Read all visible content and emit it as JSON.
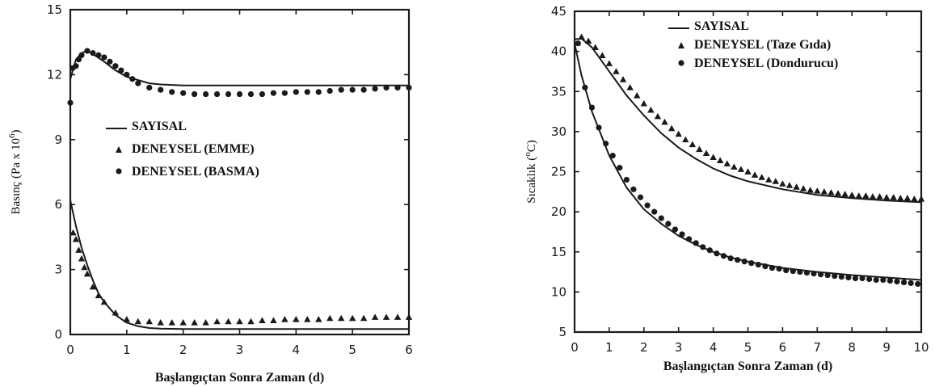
{
  "chart_data": [
    {
      "type": "line",
      "xlabel": "Başlangıçtan Sonra Zaman (d)",
      "ylabel": "Basınç (Pa x 10",
      "ylabel_exp": "6",
      "ylabel_end": ")",
      "xlim": [
        0,
        6
      ],
      "ylim": [
        0,
        15
      ],
      "xticks": [
        "0",
        "1",
        "2",
        "3",
        "4",
        "5",
        "6"
      ],
      "yticks": [
        "0",
        "3",
        "6",
        "9",
        "12",
        "15"
      ],
      "legend": [
        {
          "label": "SAYISAL",
          "marker": "line"
        },
        {
          "label": "DENEYSEL (EMME)",
          "marker": "triangle"
        },
        {
          "label": "DENEYSEL (BASMA)",
          "marker": "circle"
        }
      ],
      "series": [
        {
          "name": "SAYISAL",
          "kind": "line",
          "x": [
            0,
            0.1,
            0.2,
            0.3,
            0.4,
            0.6,
            0.8,
            1.0,
            1.2,
            1.4,
            1.6,
            2,
            3,
            4,
            5,
            6
          ],
          "y": [
            11.8,
            12.7,
            13.0,
            13.1,
            12.95,
            12.6,
            12.2,
            11.9,
            11.75,
            11.6,
            11.55,
            11.5,
            11.5,
            11.5,
            11.5,
            11.5
          ]
        },
        {
          "name": "SAYISAL",
          "kind": "line",
          "x": [
            0,
            0.1,
            0.2,
            0.3,
            0.4,
            0.5,
            0.6,
            0.8,
            1.0,
            1.2,
            1.4,
            1.6,
            2,
            3,
            4,
            5,
            6
          ],
          "y": [
            6.2,
            5.0,
            4.0,
            3.2,
            2.5,
            1.9,
            1.5,
            0.9,
            0.55,
            0.38,
            0.3,
            0.27,
            0.25,
            0.25,
            0.25,
            0.25,
            0.25
          ]
        },
        {
          "name": "DENEYSEL (BASMA)",
          "kind": "circle",
          "x": [
            0,
            0.04,
            0.1,
            0.15,
            0.2,
            0.3,
            0.4,
            0.5,
            0.6,
            0.7,
            0.8,
            0.9,
            1.0,
            1.1,
            1.2,
            1.4,
            1.6,
            1.8,
            2.0,
            2.2,
            2.4,
            2.6,
            2.8,
            3.0,
            3.2,
            3.4,
            3.6,
            3.8,
            4.0,
            4.2,
            4.4,
            4.6,
            4.8,
            5.0,
            5.2,
            5.4,
            5.6,
            5.8,
            6.0
          ],
          "y": [
            10.7,
            12.3,
            12.4,
            12.7,
            12.9,
            13.1,
            13.0,
            12.9,
            12.8,
            12.6,
            12.4,
            12.2,
            12.0,
            11.8,
            11.6,
            11.4,
            11.3,
            11.2,
            11.15,
            11.1,
            11.1,
            11.1,
            11.1,
            11.1,
            11.1,
            11.1,
            11.15,
            11.15,
            11.2,
            11.2,
            11.2,
            11.25,
            11.3,
            11.3,
            11.3,
            11.35,
            11.4,
            11.4,
            11.4
          ]
        },
        {
          "name": "DENEYSEL (EMME)",
          "kind": "triangle",
          "x": [
            0.05,
            0.1,
            0.15,
            0.2,
            0.25,
            0.3,
            0.4,
            0.5,
            0.6,
            0.8,
            1.0,
            1.2,
            1.4,
            1.6,
            1.8,
            2.0,
            2.2,
            2.4,
            2.6,
            2.8,
            3.0,
            3.2,
            3.4,
            3.6,
            3.8,
            4.0,
            4.2,
            4.4,
            4.6,
            4.8,
            5.0,
            5.2,
            5.4,
            5.6,
            5.8,
            6.0
          ],
          "y": [
            4.7,
            4.4,
            3.9,
            3.5,
            3.1,
            2.8,
            2.2,
            1.8,
            1.5,
            1.0,
            0.7,
            0.6,
            0.6,
            0.55,
            0.55,
            0.55,
            0.55,
            0.55,
            0.6,
            0.6,
            0.6,
            0.6,
            0.65,
            0.65,
            0.7,
            0.7,
            0.7,
            0.7,
            0.75,
            0.75,
            0.75,
            0.75,
            0.8,
            0.8,
            0.8,
            0.8
          ]
        }
      ]
    },
    {
      "type": "line",
      "xlabel": "Başlangıçtan Sonra Zaman (d)",
      "ylabel": "Sıcaklık (",
      "ylabel_exp": "o",
      "ylabel_end": "C)",
      "xlim": [
        0,
        10
      ],
      "ylim": [
        5,
        45
      ],
      "xticks": [
        "0",
        "1",
        "2",
        "3",
        "4",
        "5",
        "6",
        "7",
        "8",
        "9",
        "10"
      ],
      "yticks": [
        "5",
        "10",
        "15",
        "20",
        "25",
        "30",
        "35",
        "40",
        "45"
      ],
      "legend": [
        {
          "label": "SAYISAL",
          "marker": "line"
        },
        {
          "label": "DENEYSEL (Taze Gıda)",
          "marker": "triangle"
        },
        {
          "label": "DENEYSEL (Dondurucu)",
          "marker": "circle"
        }
      ],
      "series": [
        {
          "name": "SAYISAL",
          "kind": "line",
          "x": [
            0,
            0.2,
            0.5,
            1,
            1.5,
            2,
            2.5,
            3,
            3.5,
            4,
            4.5,
            5,
            6,
            7,
            8,
            9,
            10
          ],
          "y": [
            41.5,
            41.6,
            40.5,
            37.5,
            34.5,
            32.0,
            29.8,
            28.0,
            26.6,
            25.4,
            24.5,
            23.8,
            22.8,
            22.1,
            21.7,
            21.4,
            21.2
          ]
        },
        {
          "name": "SAYISAL",
          "kind": "line",
          "x": [
            0,
            0.2,
            0.5,
            1,
            1.5,
            2,
            2.5,
            3,
            3.5,
            4,
            4.5,
            5,
            6,
            7,
            8,
            9,
            10
          ],
          "y": [
            41.0,
            37.0,
            32.5,
            27.0,
            23.0,
            20.3,
            18.5,
            17.0,
            15.9,
            15.0,
            14.3,
            13.8,
            13.0,
            12.5,
            12.1,
            11.8,
            11.5
          ]
        },
        {
          "name": "DENEYSEL (Taze Gıda)",
          "kind": "triangle",
          "x": [
            0.2,
            0.4,
            0.6,
            0.8,
            1.0,
            1.2,
            1.4,
            1.6,
            1.8,
            2.0,
            2.2,
            2.4,
            2.6,
            2.8,
            3.0,
            3.2,
            3.4,
            3.6,
            3.8,
            4.0,
            4.2,
            4.4,
            4.6,
            4.8,
            5.0,
            5.2,
            5.4,
            5.6,
            5.8,
            6.0,
            6.2,
            6.4,
            6.6,
            6.8,
            7.0,
            7.2,
            7.4,
            7.6,
            7.8,
            8.0,
            8.2,
            8.4,
            8.6,
            8.8,
            9.0,
            9.2,
            9.4,
            9.6,
            9.8,
            10.0
          ],
          "y": [
            41.8,
            41.3,
            40.5,
            39.5,
            38.5,
            37.5,
            36.5,
            35.5,
            34.5,
            33.5,
            32.7,
            31.9,
            31.2,
            30.4,
            29.7,
            29.0,
            28.4,
            27.8,
            27.3,
            26.8,
            26.4,
            26.0,
            25.6,
            25.3,
            25.0,
            24.6,
            24.3,
            24.0,
            23.8,
            23.5,
            23.3,
            23.1,
            22.9,
            22.7,
            22.6,
            22.5,
            22.4,
            22.3,
            22.2,
            22.1,
            22.0,
            22.0,
            21.9,
            21.9,
            21.8,
            21.8,
            21.7,
            21.7,
            21.6,
            21.6
          ]
        },
        {
          "name": "DENEYSEL (Dondurucu)",
          "kind": "circle",
          "x": [
            0.1,
            0.3,
            0.5,
            0.7,
            0.9,
            1.1,
            1.3,
            1.5,
            1.7,
            1.9,
            2.1,
            2.3,
            2.5,
            2.7,
            2.9,
            3.1,
            3.3,
            3.5,
            3.7,
            3.9,
            4.1,
            4.3,
            4.5,
            4.7,
            4.9,
            5.1,
            5.3,
            5.5,
            5.7,
            5.9,
            6.1,
            6.3,
            6.5,
            6.7,
            6.9,
            7.1,
            7.3,
            7.5,
            7.7,
            7.9,
            8.1,
            8.3,
            8.5,
            8.7,
            8.9,
            9.1,
            9.3,
            9.5,
            9.7,
            9.9
          ],
          "y": [
            41.0,
            35.5,
            33.0,
            30.5,
            28.5,
            27.0,
            25.5,
            24.0,
            22.8,
            21.8,
            20.8,
            20.0,
            19.2,
            18.5,
            17.8,
            17.2,
            16.6,
            16.1,
            15.6,
            15.2,
            14.8,
            14.5,
            14.2,
            14.0,
            13.8,
            13.6,
            13.4,
            13.2,
            13.0,
            12.9,
            12.7,
            12.6,
            12.5,
            12.4,
            12.3,
            12.2,
            12.1,
            12.0,
            11.9,
            11.8,
            11.7,
            11.7,
            11.6,
            11.5,
            11.5,
            11.4,
            11.3,
            11.2,
            11.1,
            11.0
          ]
        }
      ]
    }
  ]
}
